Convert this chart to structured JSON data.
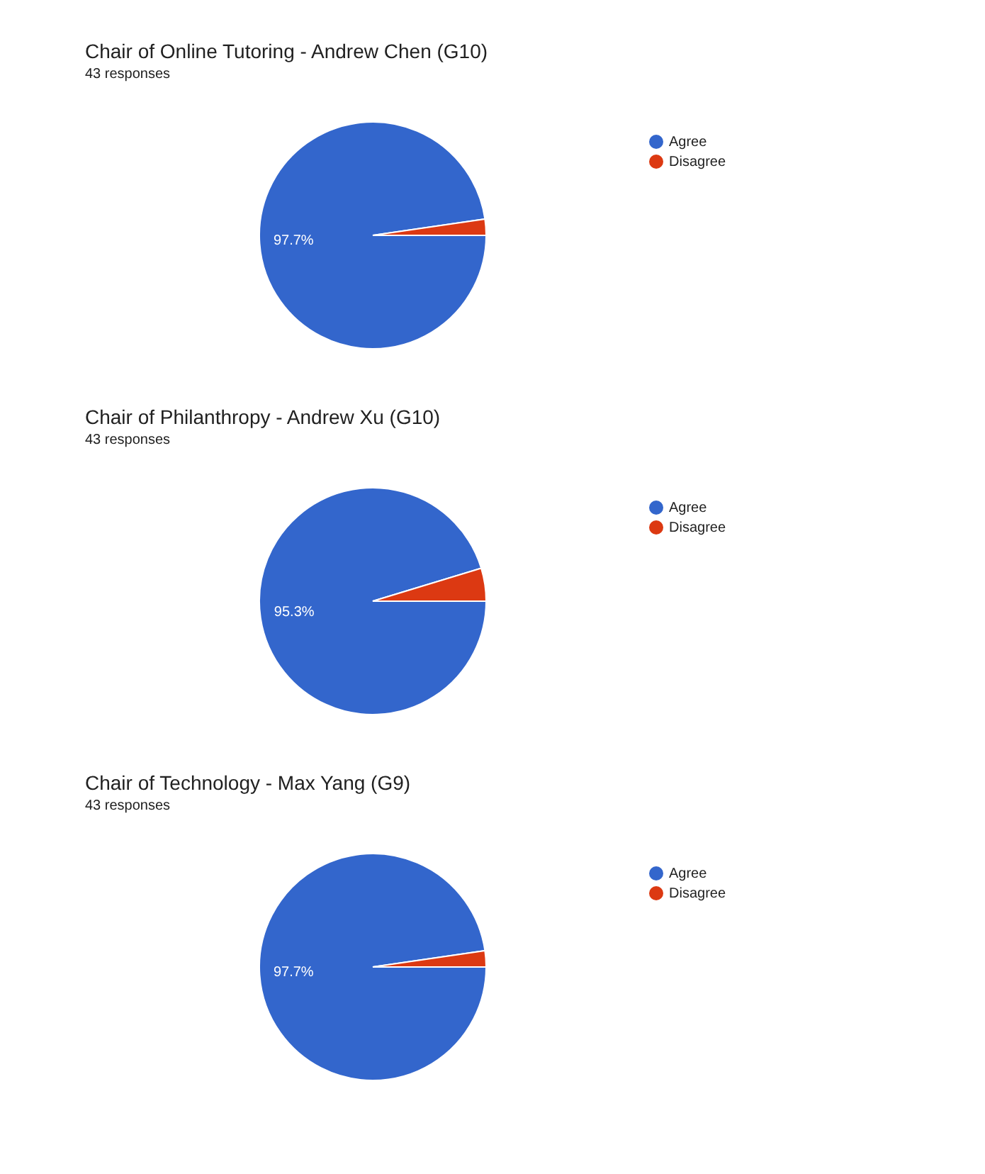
{
  "chart_data": [
    {
      "type": "pie",
      "title": "Chair of Online Tutoring - Andrew Chen (G10)",
      "subtitle": "43 responses",
      "categories": [
        "Agree",
        "Disagree"
      ],
      "values": [
        97.7,
        2.3
      ],
      "colors": [
        "#3366cc",
        "#dc3912"
      ],
      "value_labels": [
        "97.7%",
        null
      ],
      "legend": "top right"
    },
    {
      "type": "pie",
      "title": "Chair of Philanthropy - Andrew Xu (G10)",
      "subtitle": "43 responses",
      "categories": [
        "Agree",
        "Disagree"
      ],
      "values": [
        95.3,
        4.7
      ],
      "colors": [
        "#3366cc",
        "#dc3912"
      ],
      "value_labels": [
        "95.3%",
        null
      ],
      "legend": "top right"
    },
    {
      "type": "pie",
      "title": "Chair of Technology - Max Yang (G9)",
      "subtitle": "43 responses",
      "categories": [
        "Agree",
        "Disagree"
      ],
      "values": [
        97.7,
        2.3
      ],
      "colors": [
        "#3366cc",
        "#dc3912"
      ],
      "value_labels": [
        "97.7%",
        null
      ],
      "legend": "top right"
    }
  ]
}
